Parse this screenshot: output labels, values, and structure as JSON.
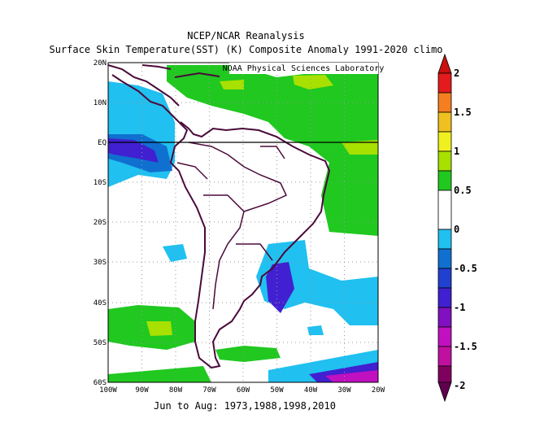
{
  "title_line1": "NCEP/NCAR Reanalysis",
  "title_line2": "Surface Skin Temperature(SST) (K) Composite Anomaly 1991-2020 climo",
  "watermark": "NOAA Physical Sciences Laboratory",
  "footer": "Jun to Aug: 1973,1988,1998,2010",
  "map": {
    "lon_range": [
      -100,
      -20
    ],
    "lat_range": [
      -60,
      20
    ],
    "lon_ticks": [
      "100W",
      "90W",
      "80W",
      "70W",
      "60W",
      "50W",
      "40W",
      "30W",
      "20W"
    ],
    "lat_ticks": [
      "20N",
      "10N",
      "EQ",
      "10S",
      "20S",
      "30S",
      "40S",
      "50S",
      "60S"
    ]
  },
  "colorbar": {
    "labels": [
      "2",
      "1.5",
      "1",
      "0.5",
      "0",
      "-0.5",
      "-1",
      "-1.5",
      "-2"
    ],
    "colors": [
      "#e41a1c",
      "#f57f20",
      "#f0c020",
      "#f0f020",
      "#a8e000",
      "#20c820",
      "#ffffff",
      "#20c0f0",
      "#1070d0",
      "#4020d0",
      "#8010c0",
      "#c010c0",
      "#600060",
      "#9a0080"
    ]
  }
}
